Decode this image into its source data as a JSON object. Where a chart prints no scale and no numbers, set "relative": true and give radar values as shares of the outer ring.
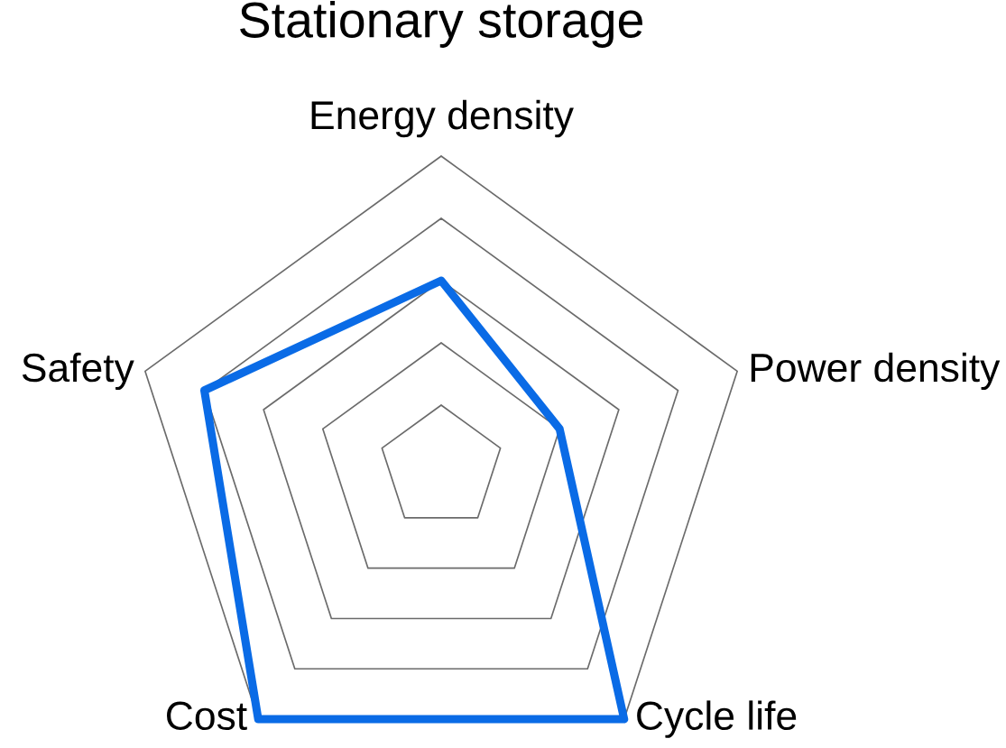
{
  "chart_data": {
    "type": "radar",
    "title": "Stationary storage",
    "categories": [
      "Energy density",
      "Power density",
      "Cycle life",
      "Cost",
      "Safety"
    ],
    "relative": true,
    "series": [
      {
        "color": "#0a6be6",
        "values": [
          0.6,
          0.4,
          1.0,
          1.0,
          0.8
        ]
      }
    ],
    "grid": true,
    "line_style": "solid"
  }
}
